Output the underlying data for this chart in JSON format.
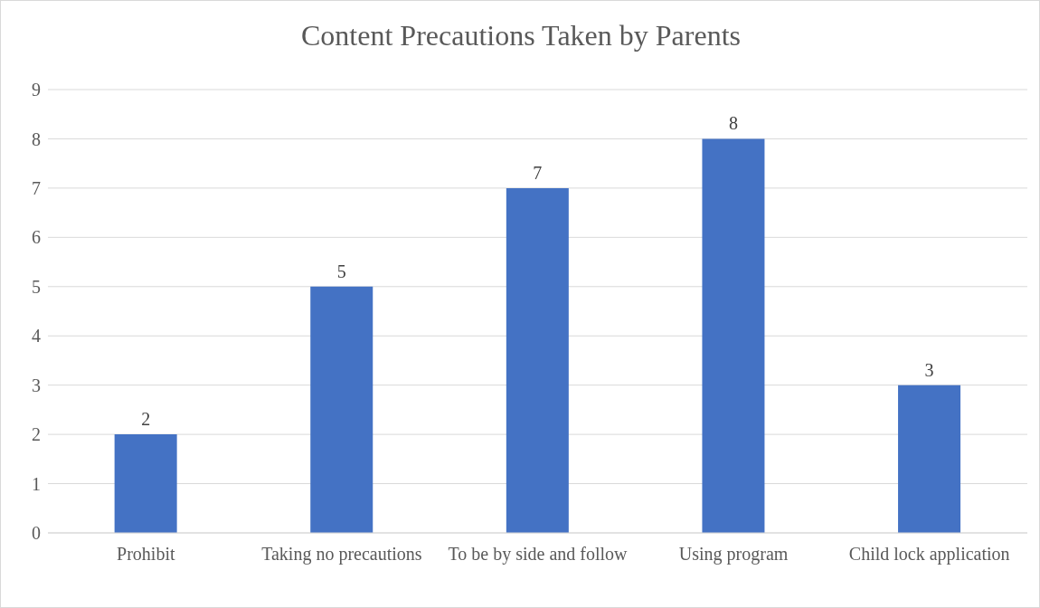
{
  "chart_data": {
    "type": "bar",
    "title": "Content Precautions Taken by Parents",
    "categories": [
      "Prohibit",
      "Taking no precautions",
      "To be by side and follow",
      "Using program",
      "Child lock application"
    ],
    "values": [
      2,
      5,
      7,
      8,
      3
    ],
    "color": "#4472c4",
    "ylim": [
      0,
      9
    ],
    "yticks": [
      0,
      1,
      2,
      3,
      4,
      5,
      6,
      7,
      8,
      9
    ],
    "grid": "y",
    "data_labels": true
  }
}
